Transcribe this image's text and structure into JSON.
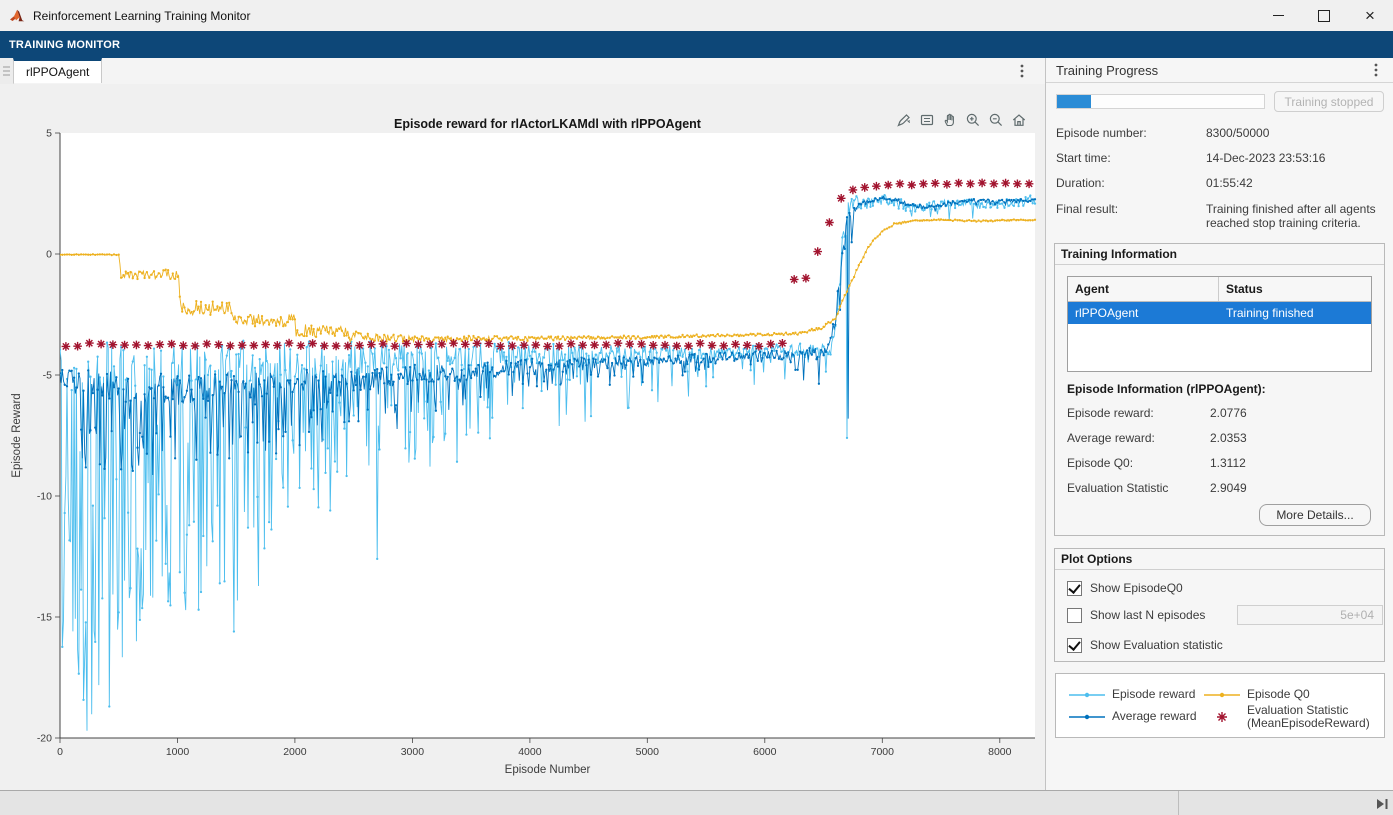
{
  "window": {
    "title": "Reinforcement Learning Training Monitor",
    "controls": [
      "minimize-icon",
      "maximize-icon",
      "close-icon"
    ],
    "close_glyph": "×"
  },
  "toolstrip": {
    "label": "TRAINING MONITOR"
  },
  "tabs": [
    {
      "label": "rlPPOAgent",
      "selected": true
    }
  ],
  "figure": {
    "toolbar_icons": [
      "brush-icon",
      "datatip-icon",
      "pan-icon",
      "zoom-in-icon",
      "zoom-out-icon",
      "home-icon"
    ]
  },
  "chart_data": {
    "type": "line",
    "title": "Episode reward for rlActorLKAMdl with rlPPOAgent",
    "xlabel": "Episode Number",
    "ylabel": "Episode Reward",
    "xlim": [
      0,
      8300
    ],
    "ylim": [
      -20,
      5
    ],
    "xticks": [
      0,
      1000,
      2000,
      3000,
      4000,
      5000,
      6000,
      7000,
      8000
    ],
    "yticks": [
      5,
      0,
      -5,
      -10,
      -15,
      -20
    ],
    "grid": false,
    "legend_position": "external-panel-bottom-right",
    "sample_step": 10,
    "series": [
      {
        "name": "Episode reward",
        "color": "#4DBEEE",
        "style": "noisy-line-with-markers",
        "base": [
          [
            0,
            -4.2
          ],
          [
            500,
            -4.15
          ],
          [
            1500,
            -4.05
          ],
          [
            3000,
            -3.95
          ],
          [
            5000,
            -3.9
          ],
          [
            6400,
            -3.85
          ],
          [
            6560,
            -3.8
          ],
          [
            6620,
            -2.2
          ],
          [
            6660,
            0.6
          ],
          [
            6700,
            1.9
          ],
          [
            6760,
            2.3
          ],
          [
            7000,
            2.35
          ],
          [
            7200,
            2.1
          ],
          [
            7330,
            2.0
          ],
          [
            7600,
            2.2
          ],
          [
            7900,
            2.15
          ],
          [
            8100,
            2.2
          ],
          [
            8300,
            2.35
          ]
        ],
        "noise": [
          [
            0,
            1.6
          ],
          [
            1000,
            1.5
          ],
          [
            2000,
            1.3
          ],
          [
            3000,
            1.0
          ],
          [
            4000,
            0.8
          ],
          [
            5000,
            0.55
          ],
          [
            6000,
            0.4
          ],
          [
            6550,
            0.45
          ],
          [
            6700,
            0.5
          ],
          [
            7000,
            0.35
          ],
          [
            8300,
            0.3
          ]
        ],
        "spike_depth": [
          [
            0,
            13
          ],
          [
            300,
            15
          ],
          [
            700,
            11
          ],
          [
            1000,
            10
          ],
          [
            1500,
            11
          ],
          [
            2000,
            6.5
          ],
          [
            2500,
            5.5
          ],
          [
            3000,
            4.5
          ],
          [
            4000,
            3.2
          ],
          [
            5000,
            2.2
          ],
          [
            6000,
            1.4
          ],
          [
            6500,
            1.2
          ],
          [
            6750,
            0.6
          ],
          [
            8300,
            0.6
          ]
        ],
        "spike_prob": [
          [
            0,
            0.5
          ],
          [
            1000,
            0.45
          ],
          [
            2000,
            0.35
          ],
          [
            3000,
            0.3
          ],
          [
            4000,
            0.25
          ],
          [
            5000,
            0.2
          ],
          [
            6000,
            0.15
          ],
          [
            6700,
            0.1
          ],
          [
            8300,
            0.07
          ]
        ],
        "extra_points": [
          [
            230,
            -19.7
          ],
          [
            420,
            -18.7
          ],
          [
            650,
            -16.0
          ],
          [
            790,
            -14.2
          ],
          [
            900,
            -12.8
          ],
          [
            1060,
            -14.0
          ],
          [
            1250,
            -12.9
          ],
          [
            1480,
            -15.6
          ],
          [
            1650,
            -11.3
          ],
          [
            2300,
            -10.6
          ],
          [
            2700,
            -12.6
          ],
          [
            6700,
            -7.6
          ]
        ]
      },
      {
        "name": "Average reward",
        "color": "#0072BD",
        "style": "noisy-line-with-markers",
        "base": [
          [
            0,
            -4.9
          ],
          [
            500,
            -5.2
          ],
          [
            1000,
            -5.3
          ],
          [
            2000,
            -5.1
          ],
          [
            3000,
            -4.8
          ],
          [
            4000,
            -4.5
          ],
          [
            5000,
            -4.3
          ],
          [
            6000,
            -4.1
          ],
          [
            6500,
            -4.0
          ],
          [
            6600,
            -2.6
          ],
          [
            6650,
            -0.3
          ],
          [
            6700,
            1.5
          ],
          [
            6800,
            2.1
          ],
          [
            7000,
            2.35
          ],
          [
            7100,
            2.3
          ],
          [
            7250,
            2.05
          ],
          [
            7400,
            1.95
          ],
          [
            7600,
            2.15
          ],
          [
            7800,
            2.25
          ],
          [
            8000,
            2.2
          ],
          [
            8300,
            2.25
          ]
        ],
        "noise": [
          [
            0,
            0.9
          ],
          [
            1000,
            1.0
          ],
          [
            2000,
            0.85
          ],
          [
            3000,
            0.65
          ],
          [
            4000,
            0.5
          ],
          [
            5000,
            0.35
          ],
          [
            6000,
            0.25
          ],
          [
            6600,
            0.5
          ],
          [
            6800,
            0.12
          ],
          [
            8300,
            0.1
          ]
        ],
        "spike_depth": [
          [
            0,
            3.5
          ],
          [
            1000,
            3.5
          ],
          [
            2000,
            2.5
          ],
          [
            3000,
            1.8
          ],
          [
            4000,
            1.1
          ],
          [
            5000,
            0.7
          ],
          [
            6000,
            0.4
          ],
          [
            6700,
            2.0
          ],
          [
            6800,
            0.2
          ],
          [
            8300,
            0.15
          ]
        ],
        "spike_prob": [
          [
            0,
            0.4
          ],
          [
            2000,
            0.3
          ],
          [
            4000,
            0.25
          ],
          [
            6000,
            0.12
          ],
          [
            8300,
            0.05
          ]
        ],
        "extra_points": [
          [
            6710,
            -6.8
          ]
        ]
      },
      {
        "name": "Episode Q0",
        "color": "#EDB120",
        "style": "noisy-line-with-markers",
        "base": [
          [
            0,
            -0.02
          ],
          [
            505,
            -0.02
          ],
          [
            515,
            -0.75
          ],
          [
            1015,
            -0.75
          ],
          [
            1025,
            -2.1
          ],
          [
            1465,
            -2.1
          ],
          [
            1475,
            -2.6
          ],
          [
            1995,
            -2.6
          ],
          [
            2005,
            -3.05
          ],
          [
            2435,
            -3.05
          ],
          [
            2445,
            -3.3
          ],
          [
            3000,
            -3.45
          ],
          [
            4000,
            -3.45
          ],
          [
            5000,
            -3.4
          ],
          [
            6000,
            -3.3
          ],
          [
            6300,
            -3.25
          ],
          [
            6500,
            -3.0
          ],
          [
            6600,
            -2.6
          ],
          [
            6700,
            -1.5
          ],
          [
            6800,
            -0.45
          ],
          [
            6900,
            0.45
          ],
          [
            7000,
            0.95
          ],
          [
            7100,
            1.25
          ],
          [
            7250,
            1.4
          ],
          [
            7500,
            1.42
          ],
          [
            7800,
            1.38
          ],
          [
            8100,
            1.42
          ],
          [
            8300,
            1.4
          ]
        ],
        "noise": [
          [
            0,
            0.02
          ],
          [
            500,
            0.03
          ],
          [
            520,
            0.3
          ],
          [
            1010,
            0.3
          ],
          [
            1030,
            0.45
          ],
          [
            2440,
            0.4
          ],
          [
            2600,
            0.28
          ],
          [
            3000,
            0.22
          ],
          [
            4000,
            0.15
          ],
          [
            5000,
            0.1
          ],
          [
            6000,
            0.08
          ],
          [
            6600,
            0.1
          ],
          [
            7000,
            0.06
          ],
          [
            8300,
            0.05
          ]
        ],
        "spike_depth": [
          [
            0,
            0
          ]
        ],
        "spike_prob": [
          [
            0,
            0
          ]
        ],
        "extra_points": []
      }
    ],
    "eval_series": {
      "name": "Evaluation Statistic (MeanEpisodeReward)",
      "color": "#A2142F",
      "marker": "asterisk",
      "x_start": 50,
      "x_step": 100,
      "flat_until": 6150,
      "flat_value": -3.75,
      "flat_jitter": 0.07,
      "tail_x": [
        6250,
        6350,
        6450,
        6550,
        6650,
        6750,
        6850,
        6950,
        7050,
        7150,
        7250,
        7350,
        7450,
        7550,
        7650,
        7750,
        7850,
        7950,
        8050,
        8150,
        8250
      ],
      "tail_y": [
        -1.05,
        -1.0,
        0.1,
        1.3,
        2.3,
        2.65,
        2.75,
        2.8,
        2.85,
        2.9,
        2.85,
        2.9,
        2.92,
        2.88,
        2.93,
        2.9,
        2.94,
        2.9,
        2.93,
        2.9,
        2.9
      ]
    }
  },
  "training_progress": {
    "title": "Training Progress",
    "progress_percent": 16.6,
    "stop_button": "Training stopped",
    "fields": [
      {
        "label": "Episode number:",
        "value": "8300/50000"
      },
      {
        "label": "Start time:",
        "value": "14-Dec-2023 23:53:16"
      },
      {
        "label": "Duration:",
        "value": "01:55:42"
      },
      {
        "label": "Final result:",
        "value": "Training finished after all agents reached stop training criteria."
      }
    ]
  },
  "training_information": {
    "title": "Training Information",
    "table": {
      "headers": [
        "Agent",
        "Status"
      ],
      "rows": [
        {
          "agent": "rlPPOAgent",
          "status": "Training finished",
          "selected": true
        }
      ]
    },
    "episode_info_title": "Episode Information (rlPPOAgent):",
    "fields": [
      {
        "label": "Episode reward:",
        "value": "2.0776"
      },
      {
        "label": "Average reward:",
        "value": "2.0353"
      },
      {
        "label": "Episode Q0:",
        "value": "1.3112"
      },
      {
        "label": "Evaluation Statistic",
        "value": "2.9049"
      }
    ],
    "more_details_button": "More Details..."
  },
  "plot_options": {
    "title": "Plot Options",
    "options": [
      {
        "label": "Show EpisodeQ0",
        "checked": true
      },
      {
        "label": "Show last N episodes",
        "checked": false,
        "input_value": "5e+04"
      },
      {
        "label": "Show Evaluation statistic",
        "checked": true
      }
    ]
  },
  "legend": {
    "items": [
      {
        "label": "Episode reward",
        "label2": "",
        "marker": "line-dot",
        "color": "#4DBEEE"
      },
      {
        "label": "Average reward",
        "label2": "",
        "marker": "line-dot",
        "color": "#0072BD"
      },
      {
        "label": "Episode Q0",
        "label2": "",
        "marker": "line-dot",
        "color": "#EDB120"
      },
      {
        "label": "Evaluation Statistic",
        "label2": "(MeanEpisodeReward)",
        "marker": "asterisk",
        "color": "#A2142F"
      }
    ]
  },
  "colors": {
    "toolstrip": "#0d4778",
    "selection_blue": "#1c7ad6",
    "progress_fill": "#2b8cd6",
    "figure_bg": "#f0f0f0",
    "plot_bg": "#ffffff"
  }
}
